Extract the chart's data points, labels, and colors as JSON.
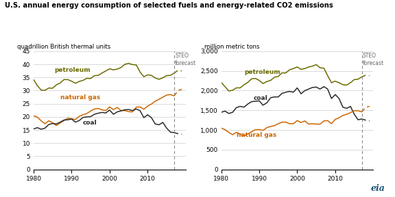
{
  "title": "U.S. annual energy consumption of selected fuels and energy-related CO2 emissions",
  "left_ylabel": "quadrillion British thermal units",
  "right_ylabel": "million metric tons",
  "steo_label": "STEO\nforecast",
  "forecast_year": 2017,
  "left_ylim": [
    0,
    45
  ],
  "right_ylim": [
    0,
    3000
  ],
  "left_yticks": [
    0,
    5,
    10,
    15,
    20,
    25,
    30,
    35,
    40,
    45
  ],
  "right_yticks": [
    0,
    500,
    1000,
    1500,
    2000,
    2500,
    3000
  ],
  "xlim": [
    1980,
    2020
  ],
  "xticks": [
    1980,
    1990,
    2000,
    2010
  ],
  "color_petroleum": "#6b6b00",
  "color_natural_gas": "#cc6600",
  "color_coal": "#2a2a2a",
  "left_petroleum_x": [
    1980,
    1981,
    1982,
    1983,
    1984,
    1985,
    1986,
    1987,
    1988,
    1989,
    1990,
    1991,
    1992,
    1993,
    1994,
    1995,
    1996,
    1997,
    1998,
    1999,
    2000,
    2001,
    2002,
    2003,
    2004,
    2005,
    2006,
    2007,
    2008,
    2009,
    2010,
    2011,
    2012,
    2013,
    2014,
    2015,
    2016,
    2017,
    2018,
    2019
  ],
  "left_petroleum_y": [
    34.2,
    31.9,
    30.2,
    30.1,
    31.0,
    30.9,
    32.2,
    32.9,
    34.2,
    34.2,
    33.6,
    32.8,
    33.5,
    33.9,
    34.7,
    34.6,
    35.7,
    35.8,
    36.7,
    37.5,
    38.3,
    37.9,
    38.2,
    38.8,
    40.0,
    40.4,
    39.9,
    39.8,
    37.1,
    35.3,
    36.0,
    35.8,
    34.8,
    34.3,
    34.9,
    35.7,
    35.8,
    36.7,
    37.7,
    37.5
  ],
  "left_natgas_x": [
    1980,
    1981,
    1982,
    1983,
    1984,
    1985,
    1986,
    1987,
    1988,
    1989,
    1990,
    1991,
    1992,
    1993,
    1994,
    1995,
    1996,
    1997,
    1998,
    1999,
    2000,
    2001,
    2002,
    2003,
    2004,
    2005,
    2006,
    2007,
    2008,
    2009,
    2010,
    2011,
    2012,
    2013,
    2014,
    2015,
    2016,
    2017,
    2018,
    2019
  ],
  "left_natgas_y": [
    20.4,
    19.9,
    18.5,
    17.4,
    18.5,
    17.8,
    16.7,
    17.7,
    18.6,
    19.5,
    19.3,
    19.0,
    20.2,
    20.8,
    21.3,
    22.2,
    23.0,
    23.2,
    22.7,
    22.4,
    23.8,
    22.8,
    23.6,
    22.4,
    22.4,
    22.0,
    21.9,
    23.7,
    23.8,
    22.9,
    24.1,
    24.9,
    26.0,
    26.7,
    27.5,
    28.3,
    28.5,
    28.0,
    30.1,
    30.5
  ],
  "left_coal_x": [
    1980,
    1981,
    1982,
    1983,
    1984,
    1985,
    1986,
    1987,
    1988,
    1989,
    1990,
    1991,
    1992,
    1993,
    1994,
    1995,
    1996,
    1997,
    1998,
    1999,
    2000,
    2001,
    2002,
    2003,
    2004,
    2005,
    2006,
    2007,
    2008,
    2009,
    2010,
    2011,
    2012,
    2013,
    2014,
    2015,
    2016,
    2017,
    2018,
    2019
  ],
  "left_coal_y": [
    15.4,
    15.9,
    15.3,
    15.7,
    17.1,
    17.5,
    17.3,
    18.0,
    18.8,
    18.9,
    19.2,
    18.0,
    18.6,
    19.8,
    20.0,
    20.1,
    21.0,
    21.4,
    21.7,
    21.5,
    22.6,
    21.0,
    21.9,
    22.3,
    22.7,
    22.8,
    22.4,
    23.0,
    22.4,
    19.7,
    20.8,
    19.7,
    17.3,
    17.0,
    17.9,
    15.7,
    14.2,
    14.0,
    13.6,
    13.4
  ],
  "right_petroleum_x": [
    1980,
    1981,
    1982,
    1983,
    1984,
    1985,
    1986,
    1987,
    1988,
    1989,
    1990,
    1991,
    1992,
    1993,
    1994,
    1995,
    1996,
    1997,
    1998,
    1999,
    2000,
    2001,
    2002,
    2003,
    2004,
    2005,
    2006,
    2007,
    2008,
    2009,
    2010,
    2011,
    2012,
    2013,
    2014,
    2015,
    2016,
    2017,
    2018,
    2019
  ],
  "right_petroleum_y": [
    2210,
    2100,
    1990,
    2010,
    2070,
    2070,
    2150,
    2210,
    2300,
    2310,
    2260,
    2180,
    2230,
    2260,
    2340,
    2360,
    2450,
    2450,
    2530,
    2560,
    2600,
    2540,
    2560,
    2600,
    2620,
    2660,
    2580,
    2570,
    2380,
    2200,
    2240,
    2200,
    2150,
    2140,
    2200,
    2280,
    2290,
    2350,
    2390,
    2380
  ],
  "right_coal_x": [
    1980,
    1981,
    1982,
    1983,
    1984,
    1985,
    1986,
    1987,
    1988,
    1989,
    1990,
    1991,
    1992,
    1993,
    1994,
    1995,
    1996,
    1997,
    1998,
    1999,
    2000,
    2001,
    2002,
    2003,
    2004,
    2005,
    2006,
    2007,
    2008,
    2009,
    2010,
    2011,
    2012,
    2013,
    2014,
    2015,
    2016,
    2017,
    2018,
    2019
  ],
  "right_coal_y": [
    1450,
    1480,
    1420,
    1450,
    1570,
    1600,
    1580,
    1660,
    1720,
    1730,
    1740,
    1630,
    1690,
    1820,
    1840,
    1840,
    1930,
    1960,
    1980,
    1960,
    2070,
    1920,
    2000,
    2040,
    2080,
    2090,
    2040,
    2100,
    2040,
    1800,
    1900,
    1800,
    1580,
    1550,
    1600,
    1400,
    1260,
    1280,
    1250,
    1230
  ],
  "right_natgas_x": [
    1980,
    1981,
    1982,
    1983,
    1984,
    1985,
    1986,
    1987,
    1989,
    1990,
    1991,
    1992,
    1993,
    1994,
    1995,
    1996,
    1997,
    1998,
    1999,
    2000,
    2001,
    2002,
    2003,
    2004,
    2005,
    2006,
    2007,
    2008,
    2009,
    2010,
    2011,
    2012,
    2013,
    2014,
    2015,
    2016,
    2017,
    2018,
    2019
  ],
  "right_natgas_y": [
    1050,
    1010,
    940,
    880,
    940,
    900,
    850,
    900,
    1010,
    1010,
    990,
    1060,
    1090,
    1110,
    1160,
    1200,
    1200,
    1160,
    1160,
    1240,
    1190,
    1230,
    1150,
    1160,
    1150,
    1150,
    1230,
    1240,
    1160,
    1270,
    1310,
    1370,
    1400,
    1440,
    1490,
    1490,
    1460,
    1580,
    1600
  ],
  "eia_logo_color": "#1a5276"
}
